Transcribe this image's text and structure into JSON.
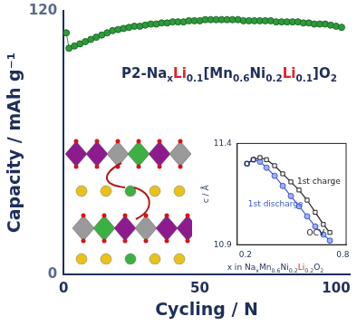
{
  "chart_data": [
    {
      "type": "line",
      "title": "P2-NaxLi0.1[Mn0.6Ni0.2Li0.1]O2",
      "xlabel": "Cycling / N",
      "ylabel": "Capacity / mAh g⁻¹",
      "x": [
        1,
        2,
        4,
        6,
        8,
        10,
        12,
        14,
        16,
        18,
        20,
        22,
        24,
        26,
        28,
        30,
        32,
        34,
        36,
        38,
        40,
        42,
        44,
        46,
        48,
        50,
        52,
        54,
        56,
        58,
        60,
        62,
        64,
        66,
        68,
        70,
        72,
        74,
        76,
        78,
        80,
        82,
        84,
        86,
        88,
        90,
        92,
        94,
        96,
        98,
        100,
        102
      ],
      "values": [
        110,
        103,
        104,
        105,
        106,
        107,
        108,
        109,
        110,
        111,
        111.5,
        112,
        112.5,
        113,
        113,
        113.5,
        114,
        114,
        114.5,
        114.5,
        115,
        115,
        115,
        115.5,
        115.5,
        115.5,
        116,
        116,
        116,
        116,
        116,
        116,
        116,
        115.5,
        115.5,
        115.5,
        115.5,
        115.5,
        115.5,
        115,
        115,
        115,
        115,
        115,
        114.5,
        114.5,
        114,
        114,
        114,
        113.5,
        113,
        112.5
      ],
      "color": "#2f9a3a",
      "marker": "circle",
      "line_style": "solid",
      "xlim": [
        0,
        105
      ],
      "xticks": [
        0,
        50,
        100
      ],
      "ylim": [
        0,
        120
      ],
      "yticks": [
        0,
        120
      ],
      "grid": false
    },
    {
      "type": "line",
      "xlabel": "x in NaxMn0.6Ni0.2Li0.2O2",
      "ylabel": "c / Å",
      "series": [
        {
          "name": "1st charge",
          "color": "#222222",
          "marker": "square",
          "line_style": "solid",
          "x": [
            0.72,
            0.68,
            0.63,
            0.58,
            0.53,
            0.48,
            0.43,
            0.38,
            0.33,
            0.29,
            0.25,
            0.21
          ],
          "values": [
            10.96,
            11.0,
            11.06,
            11.12,
            11.17,
            11.21,
            11.25,
            11.29,
            11.32,
            11.33,
            11.32,
            11.3
          ]
        },
        {
          "name": "1st discharge",
          "color": "#3b5bd6",
          "marker": "circle",
          "line_style": "solid",
          "x": [
            0.21,
            0.25,
            0.29,
            0.33,
            0.38,
            0.43,
            0.48,
            0.53,
            0.58,
            0.63,
            0.68,
            0.72
          ],
          "values": [
            11.3,
            11.32,
            11.31,
            11.28,
            11.24,
            11.19,
            11.14,
            11.09,
            11.04,
            10.99,
            10.95,
            10.92
          ]
        }
      ],
      "annotations": [
        "OCV"
      ],
      "xlim": [
        0.15,
        0.82
      ],
      "xticks": [
        0.2,
        0.8
      ],
      "ylim": [
        10.9,
        11.4
      ],
      "yticks": [
        10.9,
        11.4
      ],
      "grid": false
    }
  ]
}
